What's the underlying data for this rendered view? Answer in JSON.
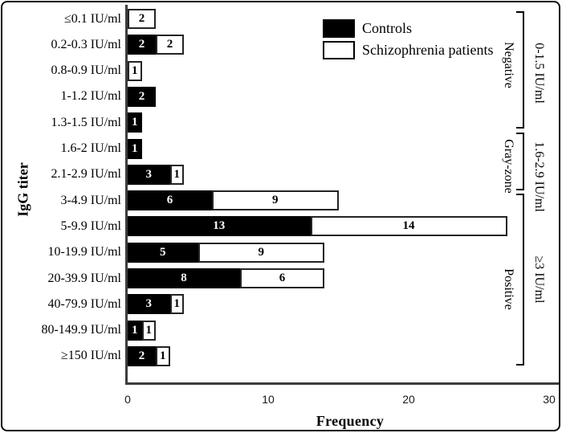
{
  "figure": {
    "x_axis_label": "Frequency",
    "y_axis_label": "IgG titer"
  },
  "chart_data": {
    "type": "bar",
    "orientation": "horizontal",
    "stacked": true,
    "title": "",
    "xlabel": "Frequency",
    "ylabel": "IgG titer",
    "xlim": [
      0,
      30
    ],
    "x_ticks": [
      0,
      10,
      20,
      30
    ],
    "grid": false,
    "legend_position": "top-left-inside",
    "categories": [
      "≤0.1 IU/ml",
      "0.2-0.3 IU/ml",
      "0.8-0.9 IU/ml",
      "1-1.2 IU/ml",
      "1.3-1.5 IU/ml",
      "1.6-2 IU/ml",
      "2.1-2.9 IU/ml",
      "3-4.9 IU/ml",
      "5-9.9 IU/ml",
      "10-19.9 IU/ml",
      "20-39.9 IU/ml",
      "40-79.9 IU/ml",
      "80-149.9 IU/ml",
      "≥150 IU/ml"
    ],
    "series": [
      {
        "name": "Controls",
        "color": "#000000",
        "values": [
          0,
          2,
          0,
          2,
          1,
          1,
          3,
          6,
          13,
          5,
          8,
          3,
          1,
          2
        ]
      },
      {
        "name": "Schizophrenia patients",
        "color": "#ffffff",
        "values": [
          2,
          2,
          1,
          0,
          0,
          0,
          1,
          9,
          14,
          9,
          6,
          1,
          1,
          1
        ]
      }
    ],
    "group_brackets": [
      {
        "label": "Negative",
        "range_label": "0-1.5 IU/ml",
        "first_category": "≤0.1 IU/ml",
        "last_category": "1.3-1.5 IU/ml"
      },
      {
        "label": "Gray-zone",
        "range_label": "1.6-2.9 IU/ml",
        "first_category": "1.6-2 IU/ml",
        "last_category": "2.1-2.9 IU/ml"
      },
      {
        "label": "Positive",
        "range_label": "≥3 IU/ml",
        "first_category": "3-4.9 IU/ml",
        "last_category": "≥150 IU/ml"
      }
    ]
  }
}
